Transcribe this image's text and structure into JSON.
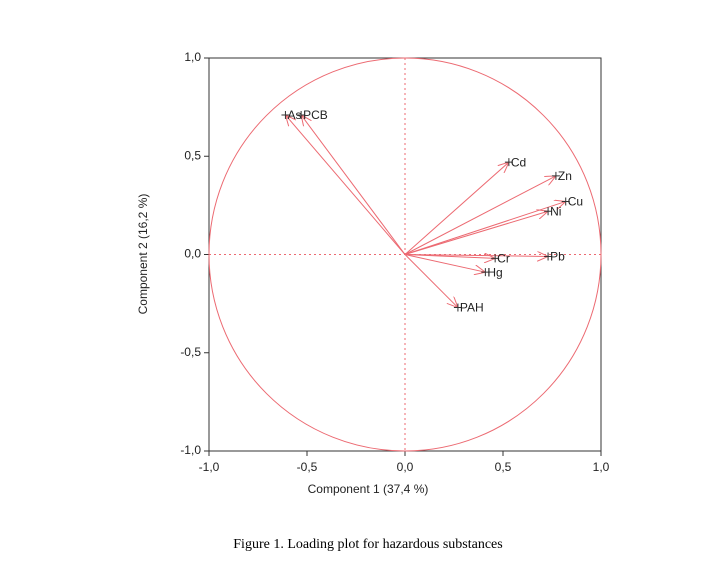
{
  "chart_data": {
    "type": "scatter",
    "xlabel": "Component 1 (37,4 %)",
    "ylabel": "Component 2 (16,2 %)",
    "caption": "Figure 1. Loading plot for hazardous substances",
    "categories": [
      "As",
      "PCB",
      "Cd",
      "Zn",
      "Cu",
      "Ni",
      "Pb",
      "Cr",
      "Hg",
      "PAH"
    ],
    "x": [
      -0.61,
      -0.53,
      0.53,
      0.77,
      0.82,
      0.73,
      0.73,
      0.46,
      0.41,
      0.27
    ],
    "values": [
      0.71,
      0.71,
      0.47,
      0.4,
      0.27,
      0.22,
      -0.01,
      -0.02,
      -0.09,
      -0.27
    ],
    "color": "#ec6a72",
    "xlim": [
      -1,
      1
    ],
    "ylim": [
      -1,
      1
    ],
    "xticks": [
      {
        "value": -1,
        "label": "-1,0"
      },
      {
        "value": -0.5,
        "label": "-0,5"
      },
      {
        "value": 0,
        "label": "0,0"
      },
      {
        "value": 0.5,
        "label": "0,5"
      },
      {
        "value": 1,
        "label": "1,0"
      }
    ],
    "yticks": [
      {
        "value": -1,
        "label": "-1,0"
      },
      {
        "value": -0.5,
        "label": "-0,5"
      },
      {
        "value": 0,
        "label": "0,0"
      },
      {
        "value": 0.5,
        "label": "0,5"
      },
      {
        "value": 1,
        "label": "1,0"
      }
    ]
  }
}
